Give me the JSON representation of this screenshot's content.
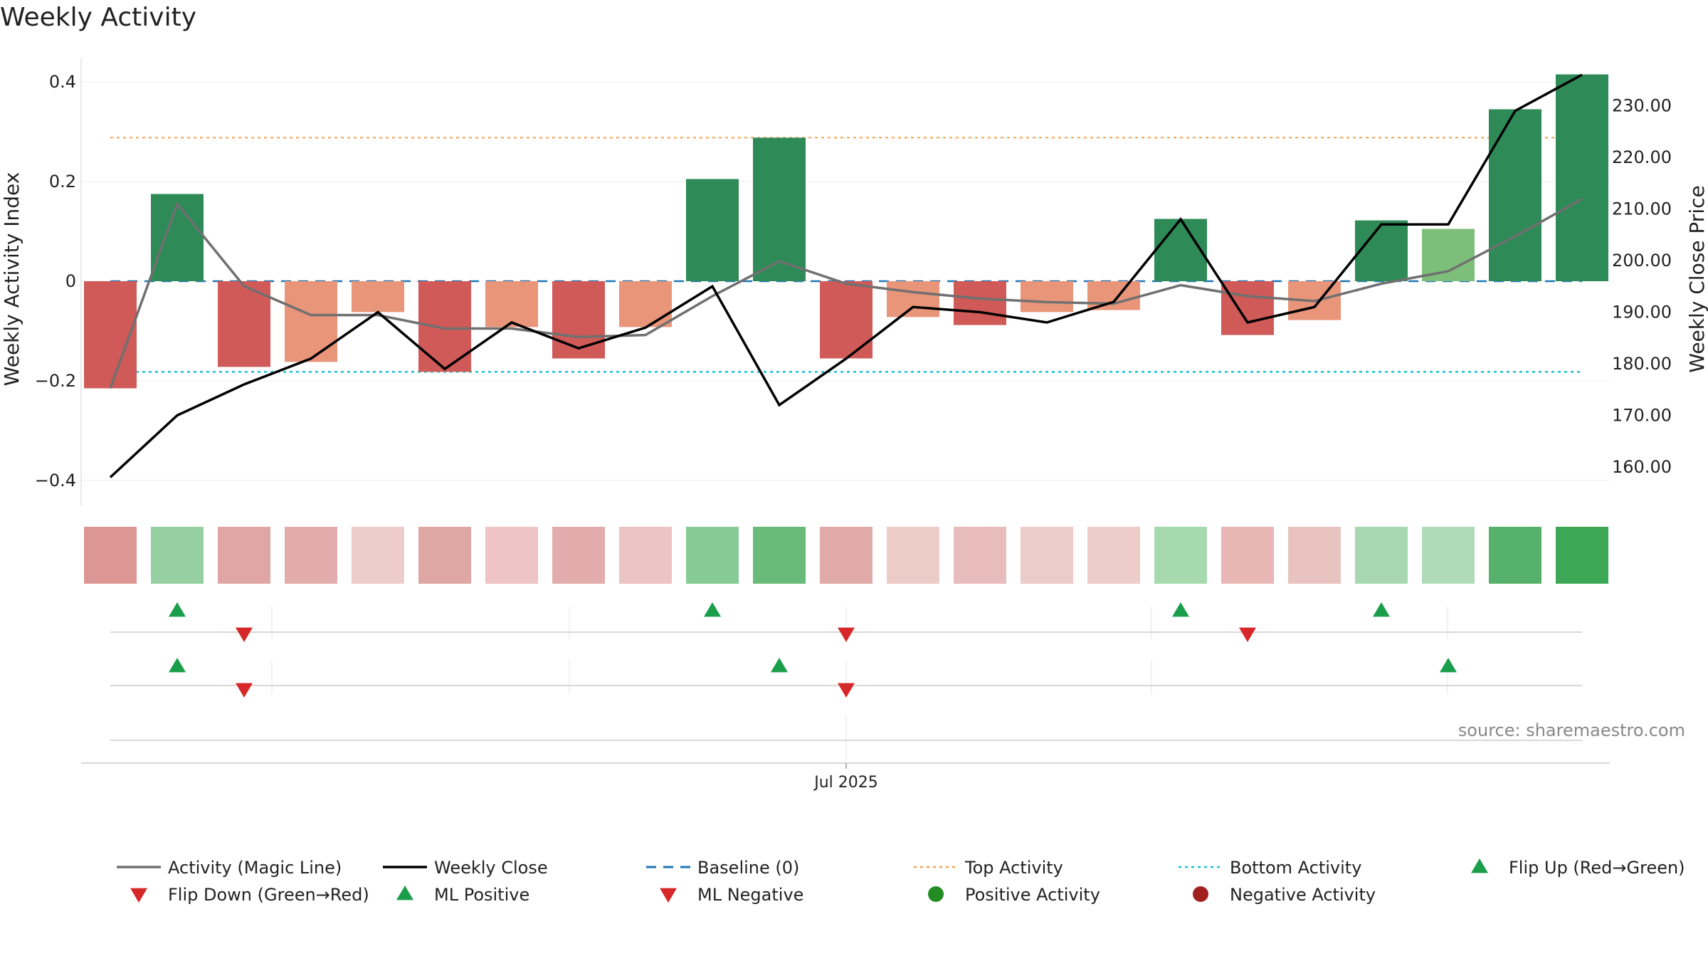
{
  "chart_data": {
    "type": "bar",
    "title": "Weekly Activity",
    "ylabel": "Weekly Activity Index",
    "y2label": "Weekly Close Price",
    "ylim": [
      -0.45,
      0.4
    ],
    "y_ticks": [
      0.4,
      0.2,
      0,
      -0.2,
      -0.4
    ],
    "y_tick_labels": [
      "0.4",
      "0.2",
      "0",
      "−0.2",
      "−0.4"
    ],
    "y2lim": [
      154,
      236
    ],
    "y2_ticks": [
      230,
      220,
      210,
      200,
      190,
      180,
      170,
      160
    ],
    "y2_tick_labels": [
      "230.00",
      "220.00",
      "210.00",
      "200.00",
      "190.00",
      "180.00",
      "170.00",
      "160.00"
    ],
    "x_tick_label": "Jul 2025",
    "x_tick_index": 11,
    "source": "source: sharemaestro.com",
    "weeks": 23,
    "activity": [
      -0.215,
      0.175,
      -0.172,
      -0.162,
      -0.062,
      -0.182,
      -0.092,
      -0.155,
      -0.092,
      0.205,
      0.288,
      -0.155,
      -0.072,
      -0.088,
      -0.062,
      -0.058,
      0.125,
      -0.108,
      -0.078,
      0.122,
      0.105,
      0.345,
      0.415
    ],
    "bar_colors": [
      "#d05a57",
      "#2e8b57",
      "#d05a57",
      "#e8957a",
      "#e8957a",
      "#d05a57",
      "#e8957a",
      "#d05a57",
      "#e8957a",
      "#2e8b57",
      "#2e8b57",
      "#d05a57",
      "#e8957a",
      "#d05a57",
      "#e8957a",
      "#e8957a",
      "#2e8b57",
      "#d05a57",
      "#e8957a",
      "#2e8b57",
      "#7dbf7a",
      "#2e8b57",
      "#2e8b57"
    ],
    "heat_colors": [
      "#dc9694",
      "#96d0a2",
      "#dfa6a5",
      "#e1acab",
      "#edcccb",
      "#dfa7a3",
      "#eec4c4",
      "#e1acab",
      "#ebc4c3",
      "#86cb96",
      "#6aba7a",
      "#e0aaa8",
      "#edcbc6",
      "#e8bcbb",
      "#edcbca",
      "#eeccca",
      "#a6d9ae",
      "#e7b6b5",
      "#e9c3c0",
      "#a8d8b0",
      "#b0dbb9",
      "#56b26a",
      "#3ca856"
    ],
    "magic_line": [
      -0.215,
      0.155,
      -0.01,
      -0.068,
      -0.068,
      -0.095,
      -0.095,
      -0.112,
      -0.108,
      -0.03,
      0.04,
      -0.005,
      -0.022,
      -0.035,
      -0.042,
      -0.045,
      -0.008,
      -0.03,
      -0.04,
      -0.005,
      0.02,
      0.09,
      0.165
    ],
    "weekly_close": [
      158,
      170,
      176,
      181,
      190,
      179,
      188,
      183,
      187,
      195,
      172,
      181,
      191,
      190,
      188,
      192,
      208,
      188,
      191,
      207,
      207,
      229,
      236
    ],
    "baseline": 0,
    "top_activity": 0.288,
    "bottom_activity": -0.182,
    "flip_up_indices": [
      1,
      9,
      16,
      19
    ],
    "flip_down_indices": [
      2,
      11,
      17
    ],
    "ml_positive_indices": [
      1,
      10,
      20
    ],
    "ml_negative_indices": [
      2,
      11
    ],
    "colors": {
      "pos_bar": "#2e8b57",
      "neg_bar": "#d05a57",
      "magic_line": "#707070",
      "weekly_close": "#000000",
      "baseline": "#1f77b4",
      "top": "#f0a050",
      "bottom": "#17c3d0",
      "up_marker": "#1a9e4a",
      "down_marker": "#d62828",
      "positive_dot": "#228b22",
      "negative_dot": "#a31f1f"
    },
    "legend": [
      {
        "key": "magic",
        "label": "Activity (Magic Line)",
        "symbol": "line",
        "color": "#707070"
      },
      {
        "key": "close",
        "label": "Weekly Close",
        "symbol": "line",
        "color": "#000000"
      },
      {
        "key": "base",
        "label": "Baseline (0)",
        "symbol": "dash",
        "color": "#1f77b4"
      },
      {
        "key": "top",
        "label": "Top Activity",
        "symbol": "dot-line",
        "color": "#f0a050"
      },
      {
        "key": "bottom",
        "label": "Bottom Activity",
        "symbol": "dot-line",
        "color": "#17c3d0"
      },
      {
        "key": "flipup",
        "label": "Flip Up (Red→Green)",
        "symbol": "tri-up",
        "color": "#1a9e4a"
      },
      {
        "key": "flipdown",
        "label": "Flip Down (Green→Red)",
        "symbol": "tri-down",
        "color": "#d62828"
      },
      {
        "key": "mlpos",
        "label": "ML Positive",
        "symbol": "tri-up",
        "color": "#1a9e4a"
      },
      {
        "key": "mlneg",
        "label": "ML Negative",
        "symbol": "tri-down",
        "color": "#d62828"
      },
      {
        "key": "posact",
        "label": "Positive Activity",
        "symbol": "circle",
        "color": "#228b22"
      },
      {
        "key": "negact",
        "label": "Negative Activity",
        "symbol": "circle",
        "color": "#a31f1f"
      }
    ]
  }
}
